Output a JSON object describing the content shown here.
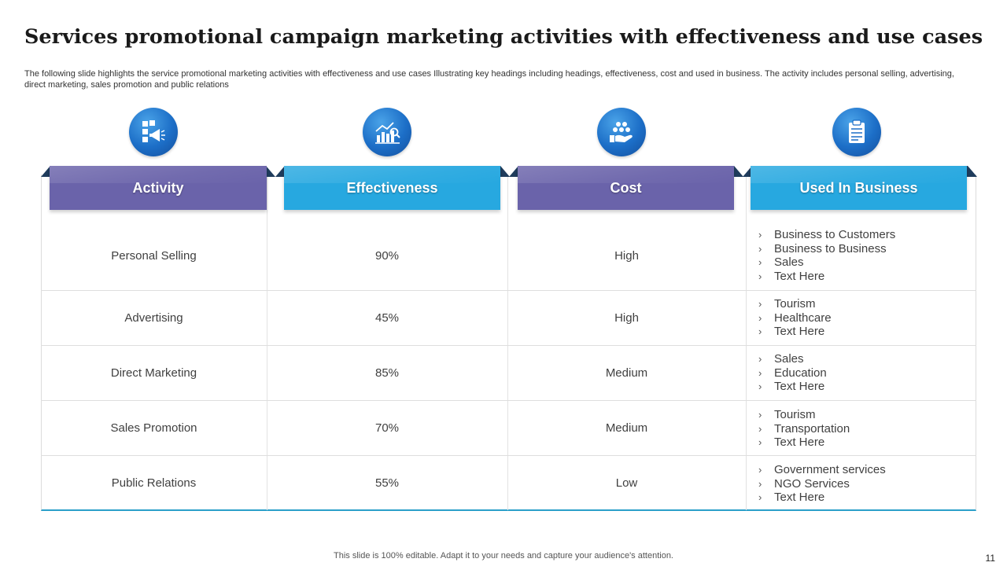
{
  "slide": {
    "title": "Services promotional campaign marketing activities with effectiveness and use cases",
    "subtitle": "The following slide highlights the service promotional marketing activities with effectiveness and use cases Illustrating key headings including headings, effectiveness, cost and used in business. The activity  includes personal selling, advertising, direct marketing, sales promotion and public relations",
    "footer": "This slide is 100% editable. Adapt it to your needs and capture your audience's attention.",
    "page_number": "11"
  },
  "colors": {
    "purple_tab": "#6a63aa",
    "blue_tab": "#27a8e0",
    "icon_blue": "#1c6ec7",
    "bottom_rule": "#2a9fc9"
  },
  "icons": [
    "megaphone-checklist-icon",
    "growth-chart-icon",
    "hand-coins-icon",
    "clipboard-icon"
  ],
  "table": {
    "headers": [
      "Activity",
      "Effectiveness",
      "Cost",
      "Used In Business"
    ],
    "rows": [
      {
        "activity": "Personal Selling",
        "effectiveness": "90%",
        "cost": "High",
        "uses": [
          "Business to Customers",
          "Business to Business",
          "Sales",
          "Text Here"
        ]
      },
      {
        "activity": "Advertising",
        "effectiveness": "45%",
        "cost": "High",
        "uses": [
          "Tourism",
          "Healthcare",
          "Text Here"
        ]
      },
      {
        "activity": "Direct Marketing",
        "effectiveness": "85%",
        "cost": "Medium",
        "uses": [
          "Sales",
          "Education",
          "Text Here"
        ]
      },
      {
        "activity": "Sales Promotion",
        "effectiveness": "70%",
        "cost": "Medium",
        "uses": [
          "Tourism",
          "Transportation",
          "Text Here"
        ]
      },
      {
        "activity": "Public Relations",
        "effectiveness": "55%",
        "cost": "Low",
        "uses": [
          "Government services",
          "NGO Services",
          "Text Here"
        ]
      }
    ]
  }
}
